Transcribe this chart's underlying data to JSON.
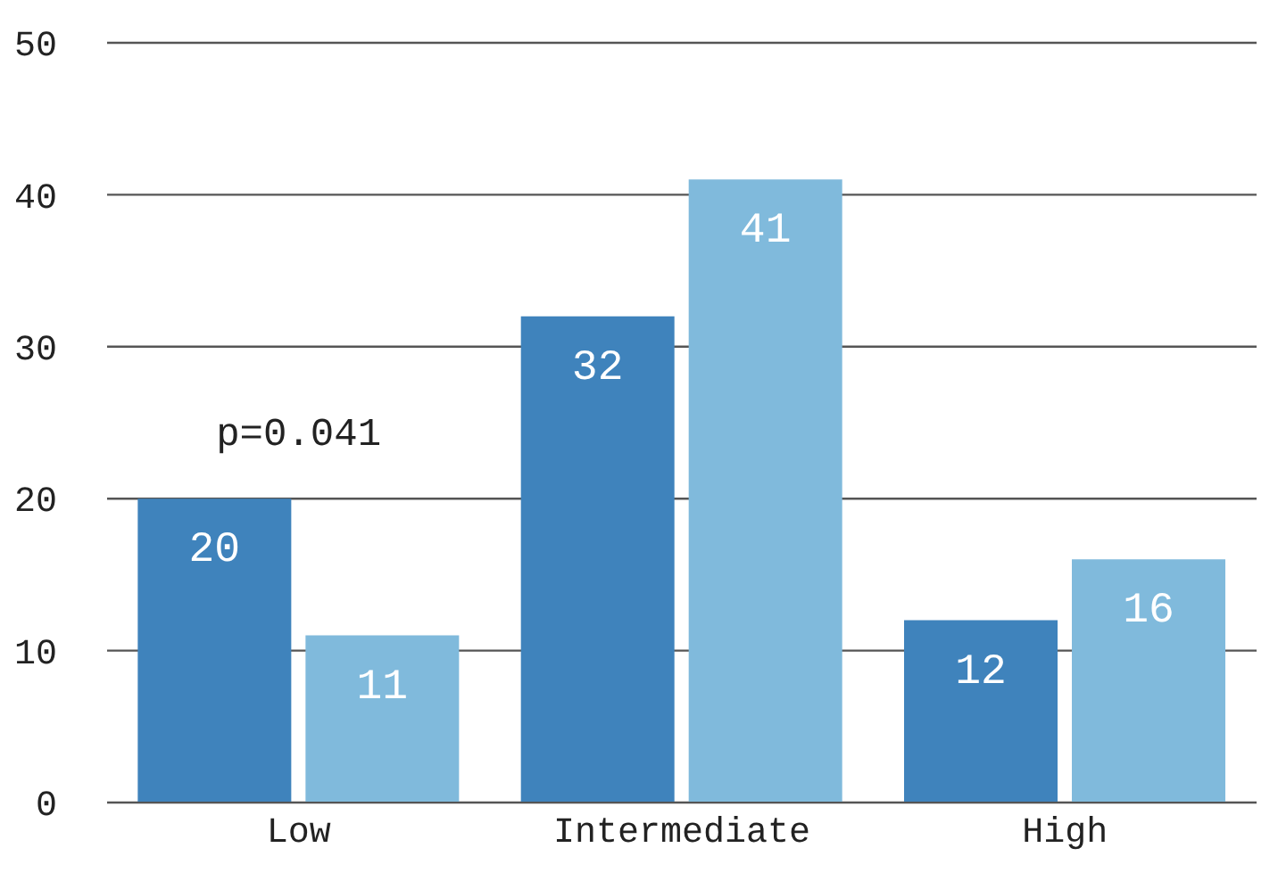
{
  "chart_data": {
    "type": "bar",
    "categories": [
      "Low",
      "Intermediate",
      "High"
    ],
    "series": [
      {
        "color": "#3f83bc",
        "values": [
          20,
          32,
          12
        ]
      },
      {
        "color": "#80badc",
        "values": [
          11,
          41,
          16
        ]
      }
    ],
    "ylim": [
      0,
      50
    ],
    "yticks": [
      0,
      10,
      20,
      30,
      40,
      50
    ],
    "grid": "y",
    "data_labels": true,
    "legend": false,
    "annotations": [
      "p=0.041"
    ]
  }
}
